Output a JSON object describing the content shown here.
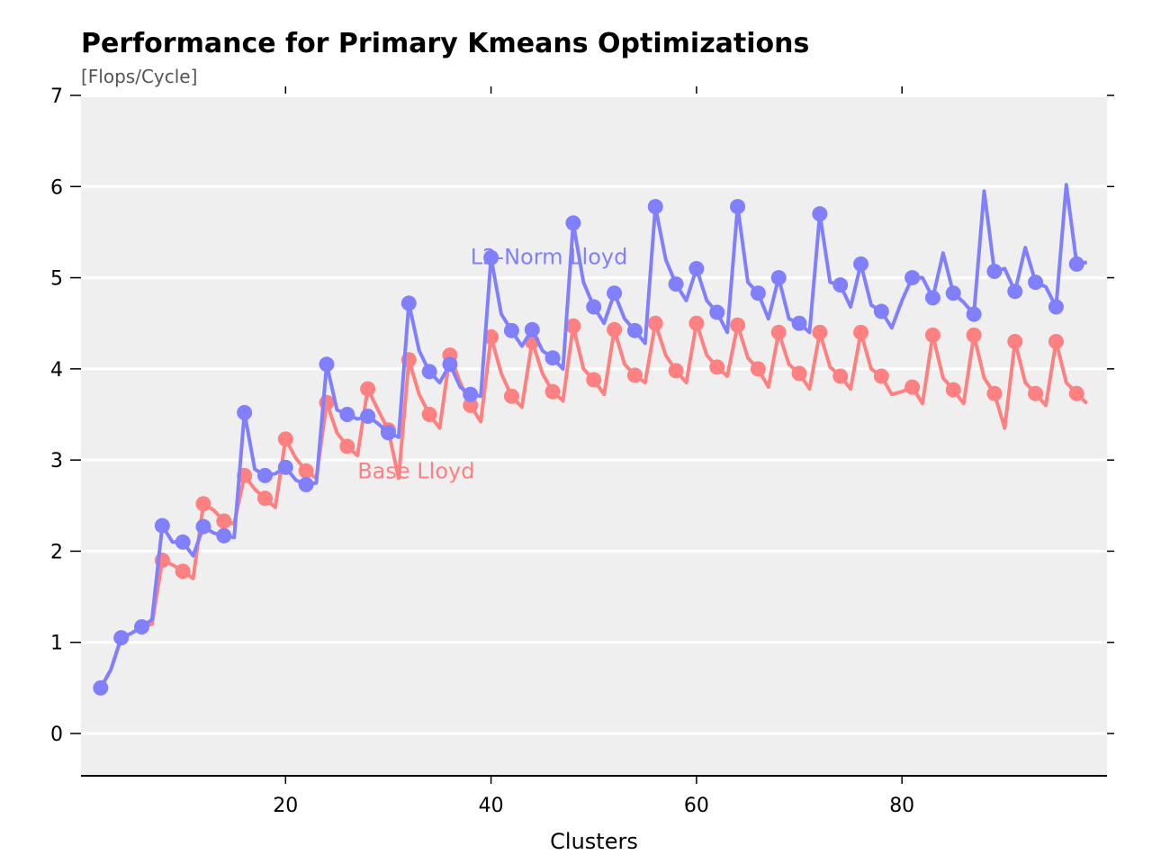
{
  "chart_data": {
    "type": "line",
    "title": "Performance for Primary Kmeans Optimizations",
    "subtitle": "[Flops/Cycle]",
    "xlabel": "Clusters",
    "ylabel": "",
    "xlim": [
      0,
      100
    ],
    "ylim": [
      -0.5,
      7
    ],
    "xticks": [
      20,
      40,
      60,
      80
    ],
    "yticks": [
      0,
      1,
      2,
      3,
      4,
      5,
      6,
      7
    ],
    "grid": "horizontal",
    "background": "#efefef",
    "series": [
      {
        "name": "L2-Norm Lloyd",
        "color": "#8080ff",
        "x": [
          2,
          3,
          4,
          5,
          6,
          7,
          8,
          9,
          10,
          11,
          12,
          13,
          14,
          15,
          16,
          17,
          18,
          19,
          20,
          21,
          22,
          23,
          24,
          25,
          26,
          27,
          28,
          29,
          30,
          31,
          32,
          33,
          34,
          35,
          36,
          37,
          38,
          39,
          40,
          41,
          42,
          43,
          44,
          45,
          46,
          47,
          48,
          49,
          50,
          51,
          52,
          53,
          54,
          55,
          56,
          57,
          58,
          59,
          60,
          61,
          62,
          63,
          64,
          65,
          66,
          67,
          68,
          69,
          70,
          71,
          72,
          73,
          74,
          75,
          76,
          77,
          78,
          79,
          80,
          81,
          82,
          83,
          84,
          85,
          86,
          87,
          88,
          89,
          90,
          91,
          92,
          93,
          94,
          95,
          96,
          97,
          98
        ],
        "y": [
          0.5,
          0.7,
          1.05,
          1.1,
          1.17,
          1.25,
          2.28,
          2.1,
          2.1,
          1.95,
          2.27,
          2.2,
          2.17,
          2.15,
          3.52,
          2.9,
          2.83,
          2.85,
          2.92,
          2.78,
          2.73,
          2.75,
          4.05,
          3.55,
          3.5,
          3.45,
          3.48,
          3.4,
          3.3,
          3.25,
          4.72,
          4.2,
          3.97,
          3.85,
          4.05,
          3.8,
          3.72,
          3.7,
          5.22,
          4.6,
          4.42,
          4.25,
          4.43,
          4.2,
          4.12,
          4.0,
          5.6,
          4.95,
          4.68,
          4.5,
          4.83,
          4.55,
          4.42,
          4.28,
          5.78,
          5.2,
          4.93,
          4.75,
          5.1,
          4.75,
          4.62,
          4.4,
          5.78,
          4.95,
          4.83,
          4.55,
          5.0,
          4.55,
          4.5,
          4.4,
          5.7,
          4.95,
          4.92,
          4.68,
          5.15,
          4.7,
          4.63,
          4.45,
          4.75,
          5.0,
          5.0,
          4.78,
          5.27,
          4.83,
          4.73,
          4.6,
          5.95,
          5.07,
          5.1,
          4.85,
          5.33,
          4.95,
          4.9,
          4.68,
          6.02,
          5.15,
          5.17
        ],
        "markers_x": [
          2,
          4,
          6,
          8,
          10,
          12,
          14,
          16,
          18,
          20,
          22,
          24,
          26,
          28,
          30,
          32,
          34,
          36,
          38,
          40,
          42,
          44,
          46,
          48,
          50,
          52,
          54,
          56,
          58,
          60,
          62,
          64,
          66,
          68,
          70,
          72,
          74,
          76,
          78,
          81,
          83,
          85,
          87,
          89,
          91,
          93,
          95,
          97
        ]
      },
      {
        "name": "Base Lloyd",
        "color": "#ff8080",
        "x": [
          2,
          3,
          4,
          5,
          6,
          7,
          8,
          9,
          10,
          11,
          12,
          13,
          14,
          15,
          16,
          17,
          18,
          19,
          20,
          21,
          22,
          23,
          24,
          25,
          26,
          27,
          28,
          29,
          30,
          31,
          32,
          33,
          34,
          35,
          36,
          37,
          38,
          39,
          40,
          41,
          42,
          43,
          44,
          45,
          46,
          47,
          48,
          49,
          50,
          51,
          52,
          53,
          54,
          55,
          56,
          57,
          58,
          59,
          60,
          61,
          62,
          63,
          64,
          65,
          66,
          67,
          68,
          69,
          70,
          71,
          72,
          73,
          74,
          75,
          76,
          77,
          78,
          79,
          80,
          81,
          82,
          83,
          84,
          85,
          86,
          87,
          88,
          89,
          90,
          91,
          92,
          93,
          94,
          95,
          96,
          97,
          98
        ],
        "y": [
          0.5,
          0.7,
          1.05,
          1.1,
          1.17,
          1.2,
          1.9,
          1.85,
          1.78,
          1.7,
          2.52,
          2.45,
          2.33,
          2.3,
          2.83,
          2.68,
          2.58,
          2.48,
          3.23,
          3.02,
          2.88,
          2.8,
          3.63,
          3.3,
          3.15,
          3.05,
          3.78,
          3.55,
          3.33,
          2.8,
          4.1,
          3.72,
          3.5,
          3.35,
          4.15,
          3.85,
          3.6,
          3.42,
          4.35,
          3.95,
          3.7,
          3.58,
          4.3,
          3.95,
          3.75,
          3.65,
          4.47,
          4.0,
          3.88,
          3.72,
          4.43,
          4.05,
          3.93,
          3.85,
          4.5,
          4.15,
          3.98,
          3.85,
          4.5,
          4.15,
          4.02,
          3.92,
          4.48,
          4.12,
          4.0,
          3.8,
          4.4,
          4.05,
          3.95,
          3.78,
          4.4,
          4.02,
          3.92,
          3.78,
          4.4,
          4.0,
          3.92,
          3.72,
          3.75,
          3.8,
          3.62,
          4.37,
          3.9,
          3.77,
          3.62,
          4.37,
          3.9,
          3.73,
          3.35,
          4.3,
          3.85,
          3.73,
          3.6,
          4.3,
          3.85,
          3.73,
          3.62
        ],
        "markers_x": [
          8,
          10,
          12,
          14,
          16,
          18,
          20,
          22,
          24,
          26,
          28,
          30,
          32,
          34,
          36,
          38,
          40,
          42,
          44,
          46,
          48,
          50,
          52,
          54,
          56,
          58,
          60,
          62,
          64,
          66,
          68,
          70,
          72,
          74,
          76,
          78,
          81,
          83,
          85,
          87,
          89,
          91,
          93,
          95,
          97
        ]
      }
    ],
    "annotations": [
      {
        "text": "L2-Norm Lloyd",
        "x": 38,
        "y": 5.15,
        "color": "#8080ff"
      },
      {
        "text": "Base Lloyd",
        "x": 27,
        "y": 2.8,
        "color": "#ff8080"
      }
    ]
  }
}
